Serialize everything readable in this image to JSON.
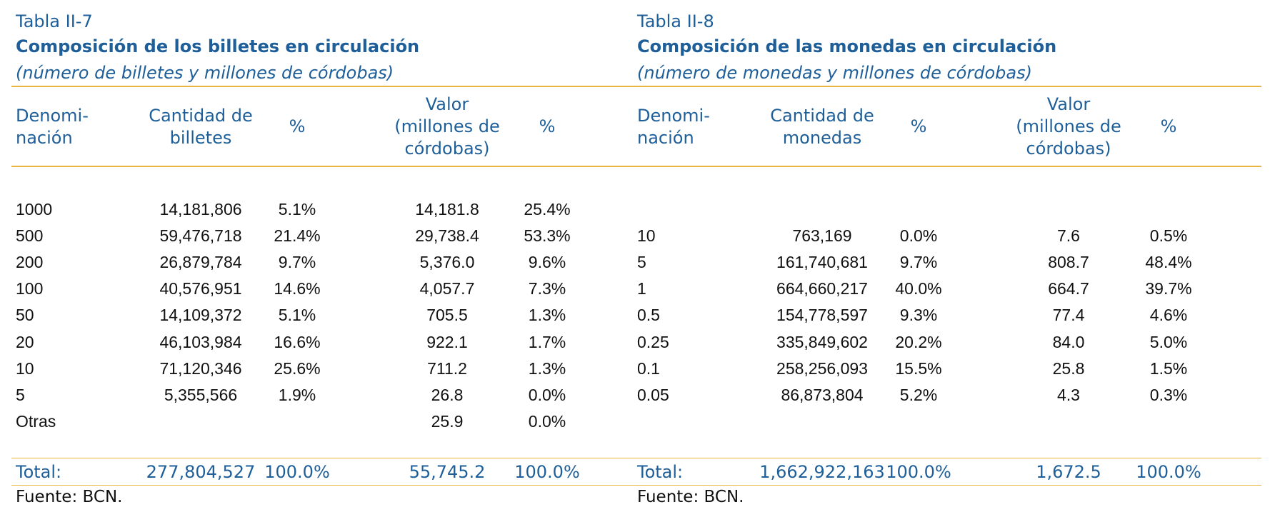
{
  "left": {
    "label": "Tabla II-7",
    "title": "Composición de los billetes en circulación",
    "subtitle": "(número de billetes y millones de córdobas)",
    "headers": {
      "denom": [
        "Denomi-",
        "nación"
      ],
      "qty": [
        "Cantidad de",
        "billetes"
      ],
      "pct": "%",
      "value": [
        "Valor",
        "(millones de",
        "córdobas)"
      ],
      "pct2": "%"
    },
    "rows": [
      {
        "d": "1000",
        "q": "14,181,806",
        "p": "5.1%",
        "v": "14,181.8",
        "p2": "25.4%"
      },
      {
        "d": "500",
        "q": "59,476,718",
        "p": "21.4%",
        "v": "29,738.4",
        "p2": "53.3%"
      },
      {
        "d": "200",
        "q": "26,879,784",
        "p": "9.7%",
        "v": "5,376.0",
        "p2": "9.6%"
      },
      {
        "d": "100",
        "q": "40,576,951",
        "p": "14.6%",
        "v": "4,057.7",
        "p2": "7.3%"
      },
      {
        "d": "50",
        "q": "14,109,372",
        "p": "5.1%",
        "v": "705.5",
        "p2": "1.3%"
      },
      {
        "d": "20",
        "q": "46,103,984",
        "p": "16.6%",
        "v": "922.1",
        "p2": "1.7%"
      },
      {
        "d": "10",
        "q": "71,120,346",
        "p": "25.6%",
        "v": "711.2",
        "p2": "1.3%"
      },
      {
        "d": "5",
        "q": "5,355,566",
        "p": "1.9%",
        "v": "26.8",
        "p2": "0.0%"
      },
      {
        "d": "Otras",
        "q": "",
        "p": "",
        "v": "25.9",
        "p2": "0.0%"
      }
    ],
    "total": {
      "d": "Total:",
      "q": "277,804,527",
      "p": "100.0%",
      "v": "55,745.2",
      "p2": "100.0%"
    },
    "source": "Fuente: BCN."
  },
  "right": {
    "label": "Tabla II-8",
    "title": "Composición de las monedas en circulación",
    "subtitle": "(número de monedas y millones de córdobas)",
    "headers": {
      "denom": [
        "Denomi-",
        "nación"
      ],
      "qty": [
        "Cantidad de",
        "monedas"
      ],
      "pct": "%",
      "value": [
        "Valor",
        "(millones de",
        "córdobas)"
      ],
      "pct2": "%"
    },
    "rows": [
      {
        "d": "",
        "q": "",
        "p": "",
        "v": "",
        "p2": ""
      },
      {
        "d": "10",
        "q": "763,169",
        "p": "0.0%",
        "v": "7.6",
        "p2": "0.5%"
      },
      {
        "d": "5",
        "q": "161,740,681",
        "p": "9.7%",
        "v": "808.7",
        "p2": "48.4%"
      },
      {
        "d": "1",
        "q": "664,660,217",
        "p": "40.0%",
        "v": "664.7",
        "p2": "39.7%"
      },
      {
        "d": "0.5",
        "q": "154,778,597",
        "p": "9.3%",
        "v": "77.4",
        "p2": "4.6%"
      },
      {
        "d": "0.25",
        "q": "335,849,602",
        "p": "20.2%",
        "v": "84.0",
        "p2": "5.0%"
      },
      {
        "d": "0.1",
        "q": "258,256,093",
        "p": "15.5%",
        "v": "25.8",
        "p2": "1.5%"
      },
      {
        "d": "0.05",
        "q": "86,873,804",
        "p": "5.2%",
        "v": "4.3",
        "p2": "0.3%"
      },
      {
        "d": "",
        "q": "",
        "p": "",
        "v": "",
        "p2": ""
      }
    ],
    "total": {
      "d": "Total:",
      "q": "1,662,922,163",
      "p": "100.0%",
      "v": "1,672.5",
      "p2": "100.0%"
    },
    "source": "Fuente: BCN."
  }
}
